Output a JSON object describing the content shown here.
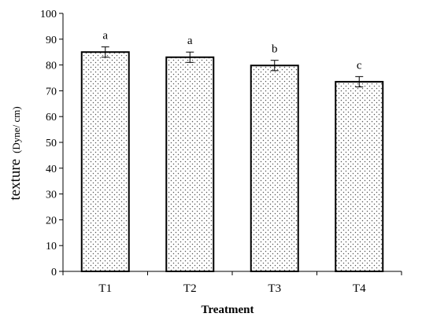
{
  "chart_data": {
    "type": "bar",
    "title": "",
    "xlabel": "Treatment",
    "ylabel": "texture",
    "ylabel_unit": "(Dyne/ cm)",
    "categories": [
      "T1",
      "T2",
      "T3",
      "T4"
    ],
    "values": [
      85,
      83,
      79.8,
      73.5
    ],
    "errors": [
      2,
      2,
      2,
      2
    ],
    "significance_letters": [
      "a",
      "a",
      "b",
      "c"
    ],
    "ylim": [
      0,
      100
    ],
    "yticks": [
      "0",
      "10",
      "20",
      "30",
      "40",
      "50",
      "60",
      "70",
      "80",
      "90",
      "100"
    ],
    "grid": false,
    "legend": "none",
    "bar_fill": "dotted",
    "colors": {
      "bar_stroke": "#000000",
      "dot": "#555555",
      "axis": "#000000"
    }
  }
}
